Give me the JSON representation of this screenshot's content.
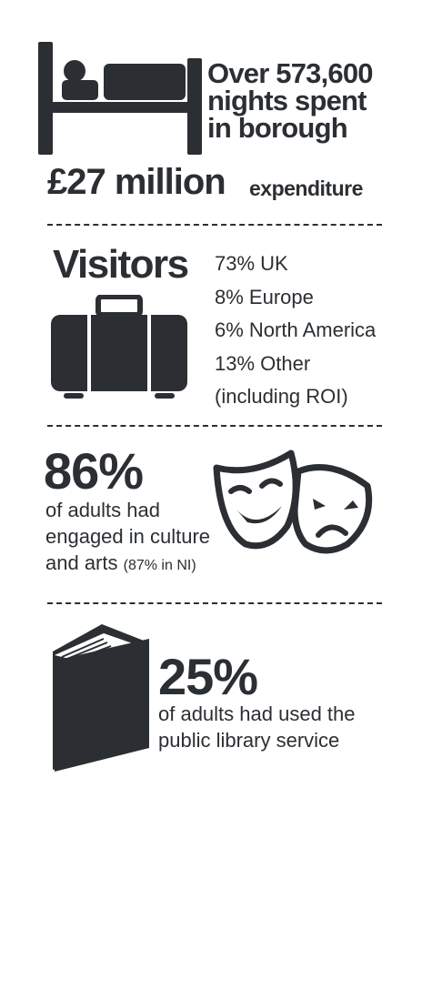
{
  "nights": {
    "line1": "Over 573,600",
    "line2": "nights spent",
    "line3": "in borough"
  },
  "expenditure": {
    "amount": "£27 million",
    "label": "expenditure"
  },
  "visitors": {
    "title": "Visitors",
    "breakdown": [
      "73% UK",
      "8% Europe",
      "6% North America",
      "13% Other",
      "(including ROI)"
    ]
  },
  "culture": {
    "percent": "86%",
    "desc_line1": "of adults had",
    "desc_line2": "engaged in culture",
    "desc_line3": "and arts",
    "note": "(87% in NI)"
  },
  "library": {
    "percent": "25%",
    "desc_line1": "of adults had used the",
    "desc_line2": "public library service"
  },
  "colors": {
    "ink": "#2b2f33",
    "background": "#ffffff"
  },
  "icons": {
    "nights": "bed-icon",
    "visitors": "suitcase-icon",
    "culture": "theatre-masks-icon",
    "library": "book-icon"
  }
}
